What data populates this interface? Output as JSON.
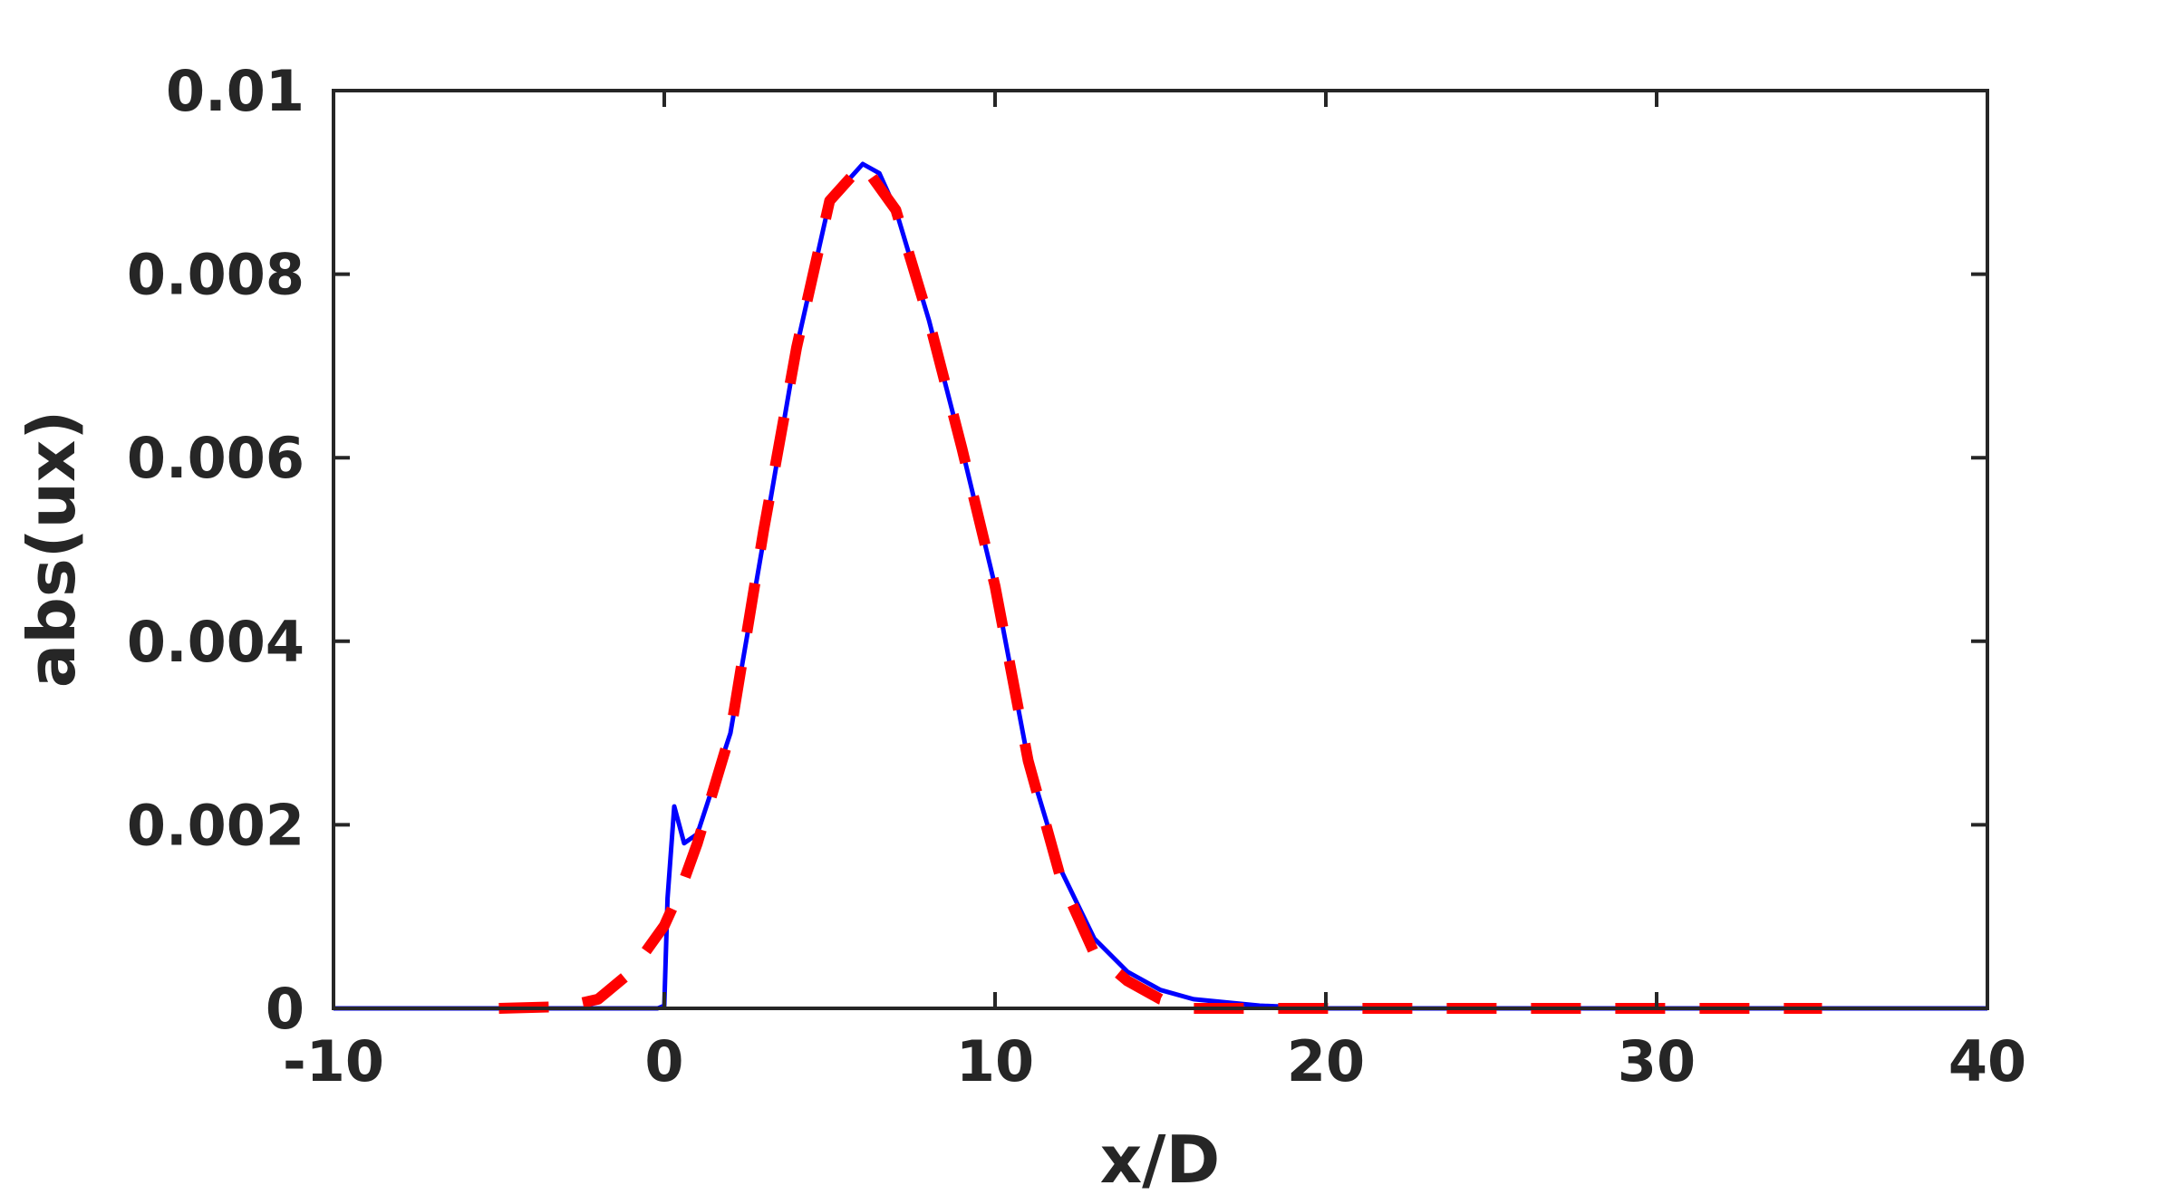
{
  "chart_data": {
    "type": "line",
    "xlabel": "x/D",
    "ylabel": "abs(ux)",
    "xlim": [
      -10,
      40
    ],
    "xticks": [
      -10,
      0,
      10,
      20,
      30,
      40
    ],
    "ylim": [
      0,
      0.01
    ],
    "yticks": [
      0,
      0.002,
      0.004,
      0.006,
      0.008,
      0.01
    ],
    "box": true,
    "series": [
      {
        "color": "#0000ff",
        "style": "solid",
        "x": [
          -10,
          -0.2,
          0,
          0.1,
          0.3,
          0.6,
          1,
          2,
          3,
          4,
          5,
          6,
          6.5,
          7,
          8,
          9,
          10,
          11,
          12,
          13,
          14,
          15,
          16,
          18,
          20,
          25,
          30,
          40
        ],
        "values": [
          0,
          0,
          3e-05,
          0.0012,
          0.0022,
          0.0018,
          0.0019,
          0.003,
          0.0051,
          0.0072,
          0.0088,
          0.0092,
          0.0091,
          0.0087,
          0.0075,
          0.0061,
          0.0046,
          0.0027,
          0.0015,
          0.00076,
          0.0004,
          0.0002,
          0.0001,
          3e-05,
          0,
          0,
          0,
          0
        ]
      },
      {
        "color": "#ff0000",
        "style": "dashed",
        "x": [
          -5,
          -3,
          -2,
          -1,
          0,
          0.5,
          1,
          2,
          3,
          4,
          5,
          6,
          7,
          8,
          9,
          10,
          11,
          12,
          13,
          14,
          15,
          16,
          18,
          20,
          25,
          30,
          35
        ],
        "values": [
          0,
          2e-05,
          0.0001,
          0.0004,
          0.0009,
          0.0013,
          0.0018,
          0.003,
          0.0052,
          0.0072,
          0.0088,
          0.0092,
          0.0087,
          0.0075,
          0.0061,
          0.0046,
          0.0027,
          0.0014,
          0.0006,
          0.0003,
          0.0001,
          0,
          0,
          0,
          0,
          0,
          0
        ]
      }
    ]
  }
}
